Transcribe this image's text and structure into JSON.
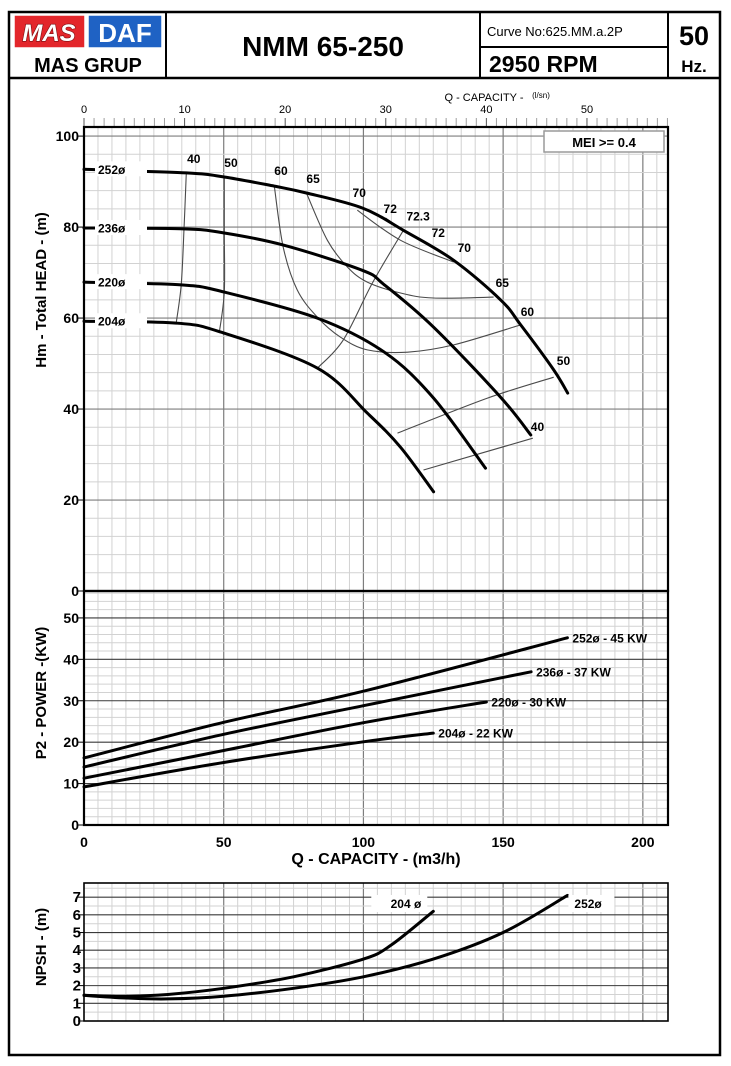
{
  "header": {
    "logo": {
      "left_brand": "MAS",
      "right_brand": "DAF",
      "group": "MAS GRUP",
      "left_color": "#e3262b",
      "right_color": "#1f62c4"
    },
    "model": "NMM 65-250",
    "curve_no": "Curve No:625.MM.a.2P",
    "speed": "2950 RPM",
    "frequency_value": "50",
    "frequency_unit": "Hz."
  },
  "chart_data": [
    {
      "type": "line",
      "title": "Head curves",
      "ylabel": "Hm - Total HEAD - (m)",
      "x2label": "Q - CAPACITY -",
      "x2unit": "(l/sn)",
      "x2ticks": [
        0,
        10,
        20,
        30,
        40,
        50
      ],
      "x2_per_x": 0.27778,
      "xlim": [
        0,
        209
      ],
      "ylim": [
        0,
        102
      ],
      "yticks": [
        0,
        20,
        40,
        60,
        80,
        100
      ],
      "grid": true,
      "badge": "MEI >= 0.4",
      "series": [
        {
          "name": "252ø",
          "points": [
            [
              0,
              92.7
            ],
            [
              36.6,
              91.9
            ],
            [
              50.2,
              91.0
            ],
            [
              68.1,
              89.0
            ],
            [
              79.6,
              87.5
            ],
            [
              99.6,
              84.2
            ],
            [
              114.3,
              79.3
            ],
            [
              132.3,
              72.7
            ],
            [
              149.1,
              64.0
            ],
            [
              156.3,
              58.5
            ],
            [
              168.1,
              48.6
            ],
            [
              173.1,
              43.5
            ]
          ]
        },
        {
          "name": "236ø",
          "points": [
            [
              0,
              79.8
            ],
            [
              35.8,
              79.6
            ],
            [
              50.2,
              78.7
            ],
            [
              71.7,
              76.0
            ],
            [
              99.6,
              70.5
            ],
            [
              107.5,
              67.3
            ],
            [
              125.1,
              58.0
            ],
            [
              149.1,
              42.6
            ],
            [
              159.9,
              34.3
            ]
          ]
        },
        {
          "name": "220ø",
          "points": [
            [
              0,
              67.9
            ],
            [
              34.8,
              67.3
            ],
            [
              50.2,
              65.7
            ],
            [
              83.5,
              60.0
            ],
            [
              107.5,
              52.5
            ],
            [
              125.1,
              42.4
            ],
            [
              143.7,
              27.0
            ]
          ]
        },
        {
          "name": "204ø",
          "points": [
            [
              0,
              59.3
            ],
            [
              33.0,
              58.9
            ],
            [
              49.1,
              56.9
            ],
            [
              83.5,
              49.0
            ],
            [
              101.4,
              39.1
            ],
            [
              113.3,
              31.6
            ],
            [
              125.1,
              21.8
            ]
          ]
        }
      ],
      "efficiency_contours": [
        {
          "label": "40",
          "points": [
            [
              36.6,
              91.9
            ],
            [
              35.8,
              79.6
            ],
            [
              34.8,
              67.3
            ],
            [
              33.0,
              58.9
            ]
          ]
        },
        {
          "label": "50",
          "points": [
            [
              50.2,
              91.0
            ],
            [
              50.2,
              78.7
            ],
            [
              50.2,
              65.7
            ],
            [
              48.4,
              56.7
            ]
          ]
        },
        {
          "label": "60",
          "points": [
            [
              68.1,
              89.0
            ],
            [
              71.3,
              75.6
            ],
            [
              76.3,
              66.2
            ],
            [
              83.5,
              60.2
            ],
            [
              91.8,
              55.8
            ],
            [
              101.4,
              53.0
            ],
            [
              115.8,
              52.5
            ],
            [
              132.3,
              54.1
            ],
            [
              156.3,
              58.5
            ]
          ]
        },
        {
          "label": "65",
          "points": [
            [
              79.6,
              87.5
            ],
            [
              87.1,
              77.1
            ],
            [
              94.3,
              71.2
            ],
            [
              101.4,
              67.9
            ],
            [
              113.3,
              65.5
            ],
            [
              125.1,
              64.4
            ],
            [
              146.6,
              64.6
            ]
          ]
        },
        {
          "label": "70",
          "points": [
            [
              97.8,
              83.7
            ],
            [
              113.3,
              77.1
            ],
            [
              132.3,
              72.3
            ]
          ]
        },
        {
          "label": "72",
          "points": [
            [
              107.9,
              82.0
            ],
            [
              115.1,
              78.9
            ],
            [
              123.3,
              76.0
            ]
          ]
        },
        {
          "label": "50",
          "points": [
            [
              168.1,
              47.0
            ],
            [
              144.4,
              42.4
            ],
            [
              112.2,
              34.7
            ]
          ]
        },
        {
          "label": "40",
          "points": [
            [
              160.6,
              33.6
            ],
            [
              121.5,
              26.6
            ]
          ]
        }
      ],
      "bep_line": {
        "label": "72.3",
        "points": [
          [
            114.3,
            79.3
          ],
          [
            103.2,
            67.7
          ],
          [
            92.8,
            55.2
          ],
          [
            83.9,
            49.2
          ]
        ]
      },
      "annotations": [
        {
          "text": "40",
          "at": [
            36.9,
            94.1
          ]
        },
        {
          "text": "50",
          "at": [
            50.2,
            93.2
          ]
        },
        {
          "text": "60",
          "at": [
            68.1,
            91.4
          ]
        },
        {
          "text": "65",
          "at": [
            79.6,
            89.7
          ]
        },
        {
          "text": "70",
          "at": [
            96.1,
            86.6
          ]
        },
        {
          "text": "72",
          "at": [
            107.2,
            83.1
          ]
        },
        {
          "text": "72.3",
          "at": [
            115.4,
            81.5
          ]
        },
        {
          "text": "72",
          "at": [
            124.4,
            77.8
          ]
        },
        {
          "text": "70",
          "at": [
            133.7,
            74.5
          ]
        },
        {
          "text": "65",
          "at": [
            147.3,
            66.8
          ]
        },
        {
          "text": "60",
          "at": [
            156.3,
            60.4
          ]
        },
        {
          "text": "50",
          "at": [
            169.2,
            49.7
          ]
        },
        {
          "text": "40",
          "at": [
            159.9,
            35.2
          ]
        }
      ]
    },
    {
      "type": "line",
      "title": "Power curves",
      "ylabel": "P2 - POWER -(KW)",
      "xlabel": "Q - CAPACITY - (m3/h)",
      "xticks": [
        0,
        50,
        100,
        150,
        200
      ],
      "xlim": [
        0,
        209
      ],
      "ylim": [
        0,
        56.5
      ],
      "yticks": [
        0,
        10,
        20,
        30,
        40,
        50
      ],
      "grid": true,
      "series": [
        {
          "name": "252ø",
          "label": "252ø - 45 KW",
          "points": [
            [
              0,
              16.2
            ],
            [
              50,
              24.8
            ],
            [
              100,
              32.3
            ],
            [
              173,
              45.2
            ]
          ]
        },
        {
          "name": "236ø",
          "label": "236ø - 37 KW",
          "points": [
            [
              0,
              14.0
            ],
            [
              50,
              21.9
            ],
            [
              100,
              28.8
            ],
            [
              160,
              37.0
            ]
          ]
        },
        {
          "name": "220ø",
          "label": "220ø - 30 KW",
          "points": [
            [
              0,
              11.3
            ],
            [
              50,
              18.0
            ],
            [
              100,
              24.7
            ],
            [
              144,
              29.7
            ]
          ]
        },
        {
          "name": "204ø",
          "label": "204ø - 22 KW",
          "points": [
            [
              0,
              9.2
            ],
            [
              50,
              15.1
            ],
            [
              100,
              20.1
            ],
            [
              125,
              22.2
            ]
          ]
        }
      ]
    },
    {
      "type": "line",
      "title": "NPSH curves",
      "ylabel": "NPSH - (m)",
      "xlim": [
        0,
        209
      ],
      "ylim": [
        0,
        7.8
      ],
      "yticks": [
        0,
        1,
        2,
        3,
        4,
        5,
        6,
        7
      ],
      "grid": true,
      "series": [
        {
          "name": "204 ø",
          "points": [
            [
              0,
              1.45
            ],
            [
              15,
              1.4
            ],
            [
              30,
              1.5
            ],
            [
              50,
              1.85
            ],
            [
              75,
              2.5
            ],
            [
              100,
              3.5
            ],
            [
              110,
              4.3
            ],
            [
              125,
              6.2
            ]
          ]
        },
        {
          "name": "252ø",
          "points": [
            [
              0,
              1.45
            ],
            [
              15,
              1.3
            ],
            [
              30,
              1.25
            ],
            [
              50,
              1.4
            ],
            [
              75,
              1.85
            ],
            [
              100,
              2.5
            ],
            [
              125,
              3.5
            ],
            [
              150,
              5.0
            ],
            [
              173,
              7.1
            ]
          ]
        }
      ]
    }
  ]
}
